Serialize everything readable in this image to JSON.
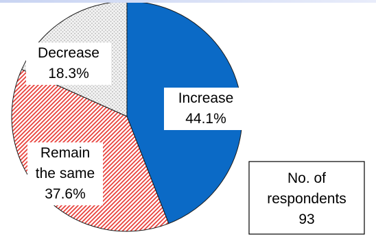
{
  "chart_data": {
    "type": "pie",
    "categories": [
      "Increase",
      "Remain the same",
      "Decrease"
    ],
    "values": [
      44.1,
      37.6,
      18.3
    ],
    "unit": "%",
    "labels": [
      [
        "Increase",
        "44.1%"
      ],
      [
        "Remain",
        "the same",
        "37.6%"
      ],
      [
        "Decrease",
        "18.3%"
      ]
    ],
    "colors": [
      "#0b6ac6",
      "#e8413b",
      "#b8b8b8"
    ],
    "fill_styles": [
      "solid",
      "diagonal-hatch",
      "dotted"
    ],
    "start_angle_deg": 0,
    "direction": "clockwise",
    "title": "",
    "respondents_box": {
      "lines": [
        "No. of",
        "respondents",
        "93"
      ]
    }
  }
}
